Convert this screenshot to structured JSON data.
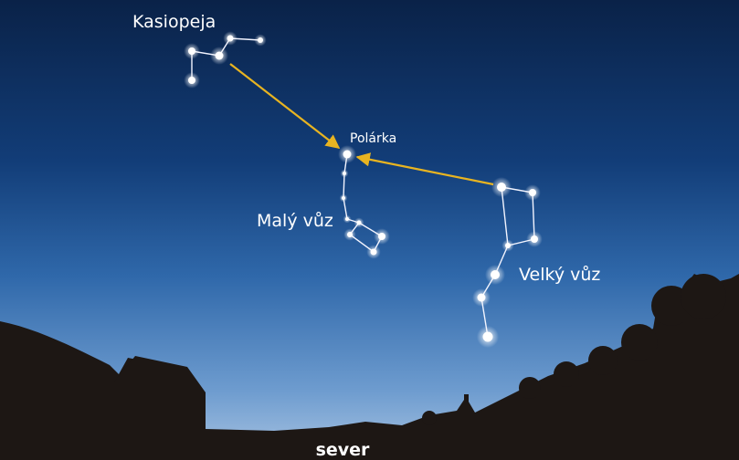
{
  "labels": {
    "cassiopeia": "Kasiopeja",
    "polaris": "Polárka",
    "little_dipper": "Malý vůz",
    "big_dipper": "Velký vůz",
    "north": "sever"
  }
}
